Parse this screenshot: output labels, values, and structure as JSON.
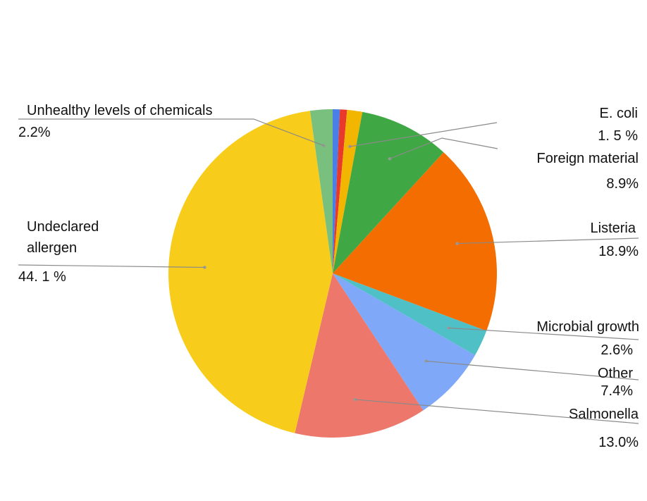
{
  "chart_data": {
    "type": "pie",
    "title": "",
    "legend": "none",
    "slices": [
      {
        "label": "",
        "value": 0.7,
        "value_label": "",
        "color": "#4a7fe8"
      },
      {
        "label": "",
        "value": 0.7,
        "value_label": "",
        "color": "#e8392b"
      },
      {
        "label": "E. coli",
        "value": 1.5,
        "value_label": "1. 5 %",
        "color": "#f2b500"
      },
      {
        "label": "Foreign material",
        "value": 8.9,
        "value_label": "8.9%",
        "color": "#3fa845"
      },
      {
        "label": "Listeria",
        "value": 18.9,
        "value_label": "18.9%",
        "color": "#f46d00"
      },
      {
        "label": "Microbial growth",
        "value": 2.6,
        "value_label": "2.6%",
        "color": "#4ec0c6"
      },
      {
        "label": "Other",
        "value": 7.4,
        "value_label": "7.4%",
        "color": "#7fa8f8"
      },
      {
        "label": "Salmonella",
        "value": 13.0,
        "value_label": "13.0%",
        "color": "#ed776b"
      },
      {
        "label": "Undeclared allergen",
        "value": 44.1,
        "value_label": "44. 1 %",
        "color": "#f8cc1b"
      },
      {
        "label": "Unhealthy levels of chemicals",
        "value": 2.2,
        "value_label": "2.2%",
        "color": "#79c07e"
      }
    ]
  }
}
